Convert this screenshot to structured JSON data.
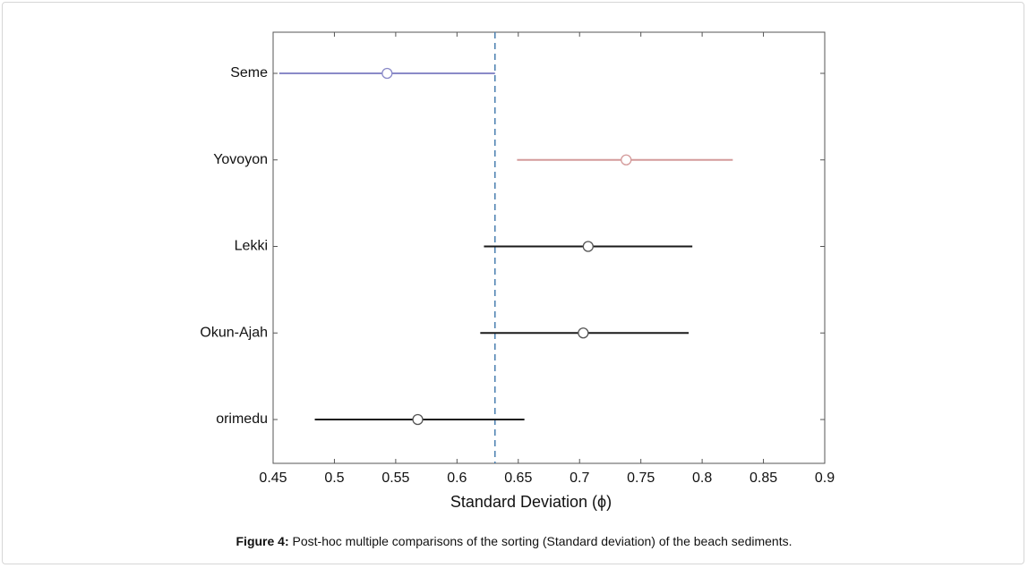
{
  "chart_data": {
    "type": "interval",
    "x_label": "Standard Deviation (ϕ)",
    "categories": [
      "Seme",
      "Yovoyon",
      "Lekki",
      "Okun-Ajah",
      "orimedu"
    ],
    "means": [
      0.543,
      0.738,
      0.707,
      0.703,
      0.568
    ],
    "lower": [
      0.455,
      0.649,
      0.622,
      0.619,
      0.484
    ],
    "upper": [
      0.631,
      0.825,
      0.792,
      0.789,
      0.655
    ],
    "colors": [
      "#8a8ac8",
      "#d49a9a",
      "#1a1a1a",
      "#1a1a1a",
      "#1a1a1a"
    ],
    "reference_x": 0.631,
    "reference_color": "#4a7fb0",
    "xlim": [
      0.45,
      0.9
    ],
    "xticks": [
      0.45,
      0.5,
      0.55,
      0.6,
      0.65,
      0.7,
      0.75,
      0.8,
      0.85,
      0.9
    ]
  },
  "caption": {
    "label": "Figure 4:",
    "text": "Post-hoc multiple comparisons of the sorting (Standard deviation) of the beach sediments."
  }
}
